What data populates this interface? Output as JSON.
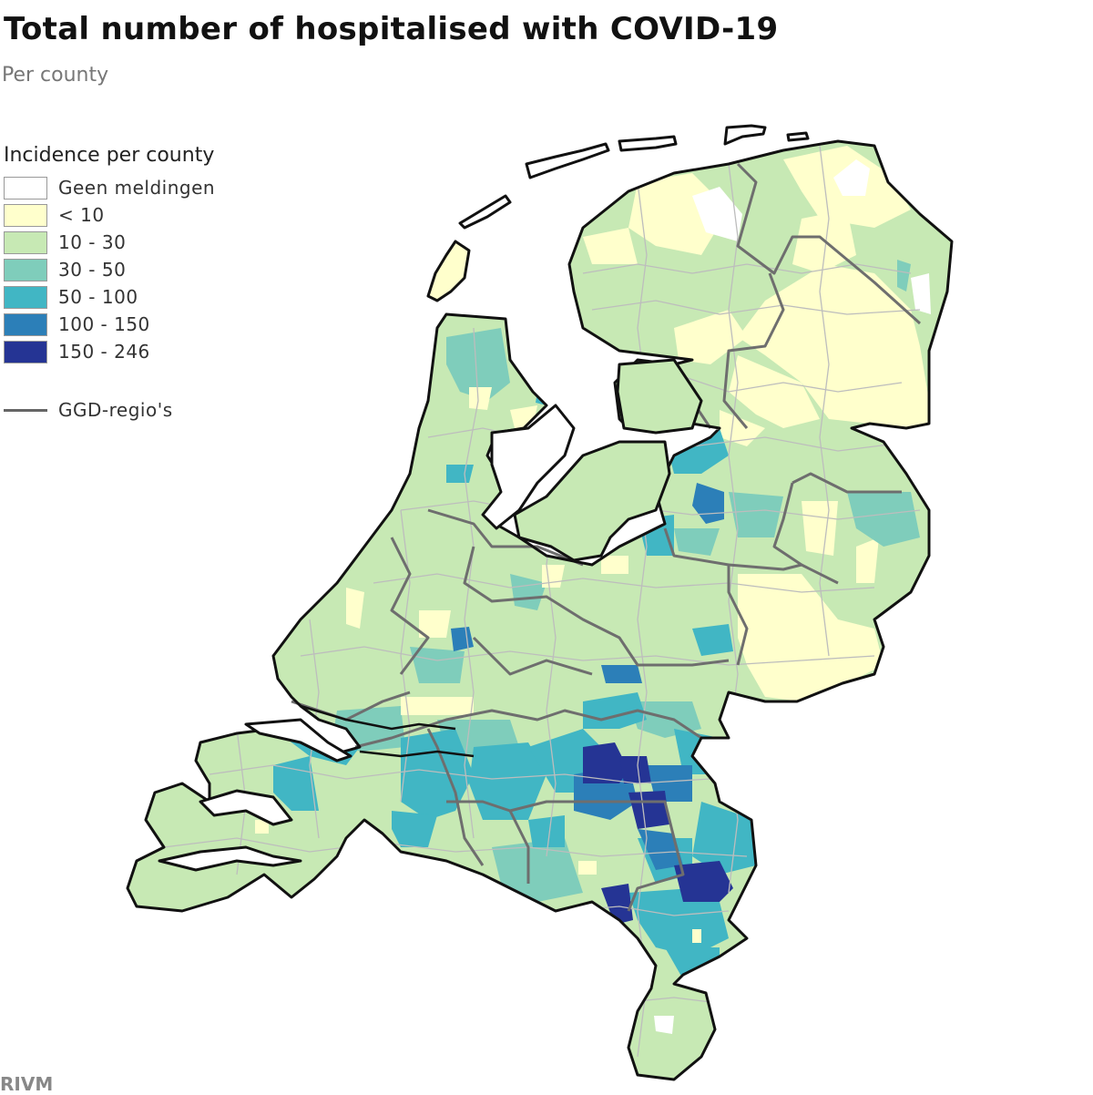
{
  "header": {
    "title": "Total number of hospitalised with COVID-19",
    "subtitle": "Per county"
  },
  "legend": {
    "title": "Incidence per county",
    "items": [
      {
        "label": "Geen meldingen",
        "color": "#ffffff"
      },
      {
        "label": "< 10",
        "color": "#ffffcc"
      },
      {
        "label": "10 - 30",
        "color": "#c7e9b4"
      },
      {
        "label": "30 - 50",
        "color": "#7fcdbb"
      },
      {
        "label": "50 - 100",
        "color": "#41b6c4"
      },
      {
        "label": "100 - 150",
        "color": "#2c7fb8"
      },
      {
        "label": "150 - 246",
        "color": "#253494"
      }
    ],
    "line_label": "GGD-regio's",
    "line_color": "#666666"
  },
  "source": "RIVM",
  "colors": {
    "border": "#111111",
    "ggd_border": "#6e6e6e",
    "county_border": "#bdbdbd"
  }
}
